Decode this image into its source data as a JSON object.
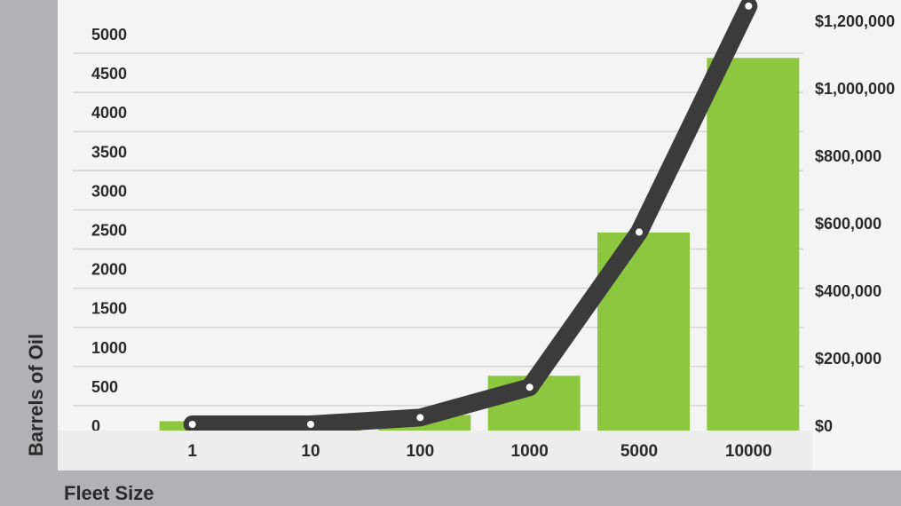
{
  "chart_data": {
    "type": "bar",
    "categories": [
      "1",
      "10",
      "100",
      "1000",
      "5000",
      "10000"
    ],
    "xlabel": "Fleet Size",
    "ylabel": "Barrels of Oil",
    "ylim": [
      0,
      5000
    ],
    "y_ticks": [
      "5000",
      "4500",
      "4000",
      "3500",
      "3000",
      "2500",
      "2000",
      "1500",
      "1000",
      "500",
      "0"
    ],
    "y2lim": [
      0,
      1200000
    ],
    "y2_ticks": [
      "$1,200,000",
      "$1,000,000",
      "$800,000",
      "$600,000",
      "$400,000",
      "$200,000",
      "$0"
    ],
    "grid": true,
    "series": [
      {
        "type": "bar",
        "axis": "left",
        "color": "#8dc63f",
        "values": [
          40,
          0,
          120,
          620,
          2450,
          4680
        ]
      },
      {
        "type": "line",
        "axis": "right",
        "color": "#3b3b3b",
        "values": [
          0,
          0,
          20000,
          110000,
          570000,
          1240000
        ]
      }
    ]
  }
}
